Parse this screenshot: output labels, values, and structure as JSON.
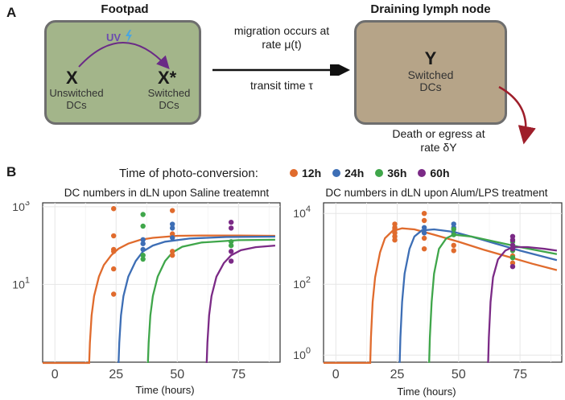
{
  "panel_a": {
    "letter": "A",
    "footpad": {
      "title": "Footpad",
      "uv_label": "UV",
      "x_symbol": "X",
      "x_desc": "Unswitched\nDCs",
      "xstar_symbol": "X*",
      "xstar_desc": "Switched\nDCs",
      "bg": "#a3b58a"
    },
    "migration_text": "migration occurs at\nrate μ(t)",
    "transit_text": "transit time τ",
    "lymph": {
      "title": "Draining lymph node",
      "y_symbol": "Y",
      "y_desc": "Switched\nDCs",
      "bg": "#b6a488"
    },
    "death_text": "Death or egress at\nrate δY"
  },
  "panel_b": {
    "letter": "B",
    "legend_title": "Time of photo-conversion:",
    "legend": [
      {
        "label": "12h",
        "color": "#e06b2d"
      },
      {
        "label": "24h",
        "color": "#3d6eb5"
      },
      {
        "label": "36h",
        "color": "#3fa64a"
      },
      {
        "label": "60h",
        "color": "#7b2a86"
      }
    ]
  },
  "chart_data": [
    {
      "type": "scatter",
      "title": "DC numbers in dLN upon Saline treatemnt",
      "xlabel": "Time (hours)",
      "ylabel": "",
      "xlim": [
        -5,
        92
      ],
      "ylim_log10": [
        -1,
        3.1
      ],
      "yscale": "log",
      "x_ticks": [
        "0",
        "25",
        "50",
        "75"
      ],
      "y_ticks": [
        {
          "base": "10",
          "exp": "1",
          "log": 1
        },
        {
          "base": "10",
          "exp": "3",
          "log": 3
        }
      ],
      "grid": true,
      "series": [
        {
          "label": "12h",
          "points": [
            [
              24,
              2.95
            ],
            [
              24,
              2.25
            ],
            [
              24,
              1.9
            ],
            [
              24,
              1.85
            ],
            [
              24,
              1.4
            ],
            [
              24,
              0.75
            ],
            [
              48,
              2.9
            ],
            [
              48,
              2.3
            ],
            [
              48,
              1.85
            ],
            [
              48,
              1.75
            ]
          ],
          "curve": [
            [
              -5,
              -1.08
            ],
            [
              14,
              -1.08
            ],
            [
              14.3,
              -0.5
            ],
            [
              15,
              0.2
            ],
            [
              16,
              0.7
            ],
            [
              18,
              1.2
            ],
            [
              20,
              1.5
            ],
            [
              23,
              1.75
            ],
            [
              26,
              1.92
            ],
            [
              30,
              2.05
            ],
            [
              35,
              2.15
            ],
            [
              40,
              2.2
            ],
            [
              50,
              2.25
            ],
            [
              60,
              2.26
            ],
            [
              75,
              2.26
            ],
            [
              90,
              2.25
            ]
          ]
        },
        {
          "label": "24h",
          "points": [
            [
              36,
              2.15
            ],
            [
              36,
              2.05
            ],
            [
              36,
              1.9
            ],
            [
              48,
              2.55
            ],
            [
              48,
              2.45
            ],
            [
              48,
              2.2
            ]
          ],
          "curve": [
            [
              26,
              -1.08
            ],
            [
              26.3,
              -0.5
            ],
            [
              27,
              0.2
            ],
            [
              28,
              0.7
            ],
            [
              30,
              1.2
            ],
            [
              33,
              1.6
            ],
            [
              36,
              1.85
            ],
            [
              40,
              2.0
            ],
            [
              45,
              2.1
            ],
            [
              55,
              2.18
            ],
            [
              70,
              2.22
            ],
            [
              90,
              2.23
            ]
          ]
        },
        {
          "label": "36h",
          "points": [
            [
              36,
              2.8
            ],
            [
              36,
              2.5
            ],
            [
              36,
              1.75
            ],
            [
              36,
              1.65
            ],
            [
              72,
              2.1
            ],
            [
              72,
              2.0
            ]
          ],
          "curve": [
            [
              38,
              -1.08
            ],
            [
              38.3,
              -0.5
            ],
            [
              39,
              0.2
            ],
            [
              40,
              0.7
            ],
            [
              42,
              1.2
            ],
            [
              45,
              1.6
            ],
            [
              48,
              1.82
            ],
            [
              52,
              1.97
            ],
            [
              60,
              2.08
            ],
            [
              75,
              2.14
            ],
            [
              90,
              2.15
            ]
          ]
        },
        {
          "label": "60h",
          "points": [
            [
              72,
              2.6
            ],
            [
              72,
              2.45
            ],
            [
              72,
              1.85
            ],
            [
              72,
              1.6
            ]
          ],
          "curve": [
            [
              62,
              -1.08
            ],
            [
              62.3,
              -0.5
            ],
            [
              63,
              0.2
            ],
            [
              64,
              0.7
            ],
            [
              66,
              1.2
            ],
            [
              69,
              1.55
            ],
            [
              72,
              1.75
            ],
            [
              76,
              1.88
            ],
            [
              82,
              1.96
            ],
            [
              90,
              2.0
            ]
          ]
        }
      ]
    },
    {
      "type": "scatter",
      "title": "DC numbers in dLN upon Alum/LPS treatment",
      "xlabel": "Time (hours)",
      "ylabel": "",
      "xlim": [
        -5,
        92
      ],
      "ylim_log10": [
        -0.2,
        4.3
      ],
      "yscale": "log",
      "x_ticks": [
        "0",
        "25",
        "50",
        "75"
      ],
      "y_ticks": [
        {
          "base": "10",
          "exp": "0",
          "log": 0
        },
        {
          "base": "10",
          "exp": "2",
          "log": 2
        },
        {
          "base": "10",
          "exp": "4",
          "log": 4
        }
      ],
      "grid": true,
      "series": [
        {
          "label": "12h",
          "points": [
            [
              24,
              3.7
            ],
            [
              24,
              3.6
            ],
            [
              24,
              3.55
            ],
            [
              24,
              3.45
            ],
            [
              24,
              3.35
            ],
            [
              24,
              3.25
            ],
            [
              36,
              4.0
            ],
            [
              36,
              3.8
            ],
            [
              36,
              3.3
            ],
            [
              36,
              3.0
            ],
            [
              48,
              3.1
            ],
            [
              48,
              2.95
            ],
            [
              72,
              2.8
            ],
            [
              72,
              2.6
            ]
          ],
          "curve": [
            [
              -5,
              -0.25
            ],
            [
              14,
              -0.25
            ],
            [
              14.3,
              0.5
            ],
            [
              15,
              1.5
            ],
            [
              16,
              2.2
            ],
            [
              18,
              2.9
            ],
            [
              20,
              3.3
            ],
            [
              23,
              3.5
            ],
            [
              27,
              3.58
            ],
            [
              32,
              3.55
            ],
            [
              40,
              3.4
            ],
            [
              50,
              3.2
            ],
            [
              60,
              2.98
            ],
            [
              70,
              2.78
            ],
            [
              80,
              2.58
            ],
            [
              90,
              2.4
            ]
          ]
        },
        {
          "label": "24h",
          "points": [
            [
              36,
              3.6
            ],
            [
              36,
              3.45
            ],
            [
              48,
              3.7
            ],
            [
              48,
              3.6
            ],
            [
              48,
              3.45
            ]
          ],
          "curve": [
            [
              26,
              -0.25
            ],
            [
              26.3,
              0.5
            ],
            [
              27,
              1.5
            ],
            [
              28,
              2.3
            ],
            [
              30,
              3.0
            ],
            [
              32,
              3.35
            ],
            [
              35,
              3.52
            ],
            [
              40,
              3.55
            ],
            [
              48,
              3.48
            ],
            [
              55,
              3.35
            ],
            [
              65,
              3.15
            ],
            [
              75,
              2.95
            ],
            [
              90,
              2.68
            ]
          ]
        },
        {
          "label": "36h",
          "points": [
            [
              48,
              3.55
            ],
            [
              48,
              3.4
            ],
            [
              72,
              3.2
            ],
            [
              72,
              2.95
            ],
            [
              72,
              2.75
            ]
          ],
          "curve": [
            [
              38,
              -0.25
            ],
            [
              38.3,
              0.5
            ],
            [
              39,
              1.5
            ],
            [
              40,
              2.3
            ],
            [
              42,
              3.0
            ],
            [
              45,
              3.3
            ],
            [
              48,
              3.4
            ],
            [
              55,
              3.35
            ],
            [
              65,
              3.2
            ],
            [
              75,
              3.05
            ],
            [
              90,
              2.85
            ]
          ]
        },
        {
          "label": "60h",
          "points": [
            [
              72,
              3.35
            ],
            [
              72,
              3.25
            ],
            [
              72,
              3.1
            ],
            [
              72,
              3.0
            ],
            [
              72,
              2.5
            ]
          ],
          "curve": [
            [
              62,
              -0.25
            ],
            [
              62.3,
              0.5
            ],
            [
              63,
              1.5
            ],
            [
              64,
              2.2
            ],
            [
              66,
              2.7
            ],
            [
              69,
              2.95
            ],
            [
              72,
              3.05
            ],
            [
              78,
              3.05
            ],
            [
              85,
              3.0
            ],
            [
              90,
              2.95
            ]
          ]
        }
      ]
    }
  ]
}
